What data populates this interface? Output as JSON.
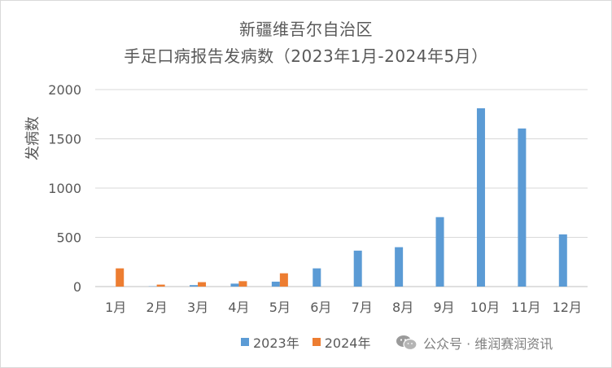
{
  "chart_data": {
    "type": "bar",
    "title": "新疆维吾尔自治区",
    "subtitle": "手足口病报告发病数（2023年1月-2024年5月）",
    "ylabel": "发病数",
    "xlabel": "",
    "ylim": [
      0,
      2000
    ],
    "yticks": [
      0,
      500,
      1000,
      1500,
      2000
    ],
    "grid": true,
    "legend_position": "bottom",
    "categories": [
      "1月",
      "2月",
      "3月",
      "4月",
      "5月",
      "6月",
      "7月",
      "8月",
      "9月",
      "10月",
      "11月",
      "12月"
    ],
    "series": [
      {
        "name": "2023年",
        "color": "#5b9bd5",
        "values": [
          0,
          3,
          15,
          30,
          50,
          185,
          365,
          400,
          705,
          1810,
          1605,
          530
        ]
      },
      {
        "name": "2024年",
        "color": "#ed7d31",
        "values": [
          185,
          20,
          45,
          55,
          135,
          null,
          null,
          null,
          null,
          null,
          null,
          null
        ]
      }
    ]
  },
  "watermark": {
    "icon": "wechat-icon",
    "text": "公众号 · 维润赛润资讯"
  }
}
